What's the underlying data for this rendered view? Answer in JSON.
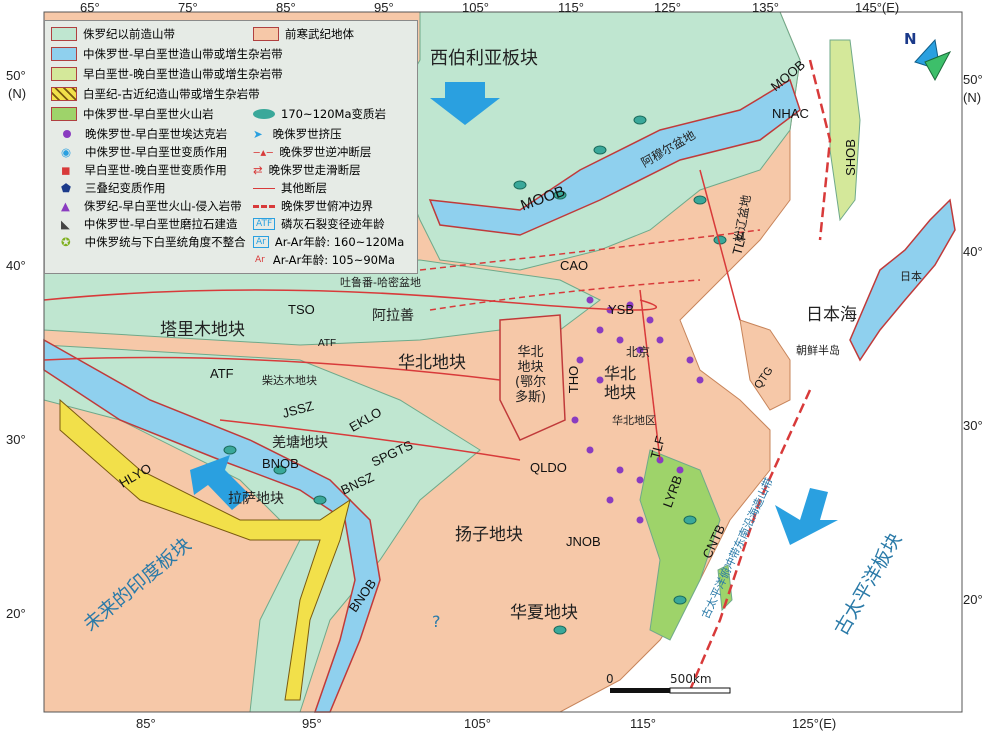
{
  "latitude_labels_left": [
    "50°",
    "(N)",
    "40°",
    "30°",
    "20°"
  ],
  "latitude_labels_right": [
    "50°",
    "(N)",
    "40°",
    "30°",
    "20°"
  ],
  "longitude_labels_top": [
    "65°",
    "75°",
    "85°",
    "95°",
    "105°",
    "115°",
    "125°",
    "135°",
    "145°(E)"
  ],
  "longitude_labels_bottom": [
    "85°",
    "95°",
    "105°",
    "115°",
    "125°(E)"
  ],
  "legend": {
    "items": [
      {
        "label": "侏罗纪以前造山带",
        "color": "#bfe6d0"
      },
      {
        "label": "中侏罗世-早白垩世造山带或增生杂岩带",
        "color": "#8fd0ee"
      },
      {
        "label": "早白垩世-晚白垩世造山带或增生杂岩带",
        "color": "#d4e89a"
      },
      {
        "label": "白垩纪-古近纪造山带或增生杂岩带",
        "color": "#f2e04a"
      },
      {
        "label": "中侏罗世-早白垩世火山岩",
        "color": "#9ed36a"
      },
      {
        "label": "晚侏罗世-早白垩世埃达克岩"
      },
      {
        "label": "中侏罗世-早白垩世变质作用"
      },
      {
        "label": "早白垩世-晚白垩世变质作用"
      },
      {
        "label": "三叠纪变质作用"
      },
      {
        "label": "侏罗纪-早白垩世火山-侵入岩带"
      },
      {
        "label": "中侏罗世-早白垩世磨拉石建造"
      },
      {
        "label": "中侏罗统与下白垩统角度不整合"
      },
      {
        "label": "前寒武纪地体",
        "color": "#f6c8a8"
      },
      {
        "label": "170~120Ma变质岩"
      },
      {
        "label": "晚侏罗世挤压"
      },
      {
        "label": "晚侏罗世逆冲断层"
      },
      {
        "label": "晚侏罗世走滑断层"
      },
      {
        "label": "其他断层"
      },
      {
        "label": "晚侏罗世俯冲边界"
      },
      {
        "label": "磷灰石裂变径迹年龄",
        "tag": "ATF"
      },
      {
        "label": "Ar-Ar年龄: 160~120Ma",
        "tag": "Ar"
      },
      {
        "label": "Ar-Ar年龄: 105~90Ma",
        "tag": "Ar"
      }
    ]
  },
  "place_labels": {
    "siberia": "西伯利亚板块",
    "tarim": "塔里木地块",
    "north_china_block": "华北地块",
    "north_china_ordos": "华北\n地块\n(鄂尔\n多斯)",
    "north_china_east": "华北\n地块",
    "north_china_region": "华北地区",
    "yangtze": "扬子地块",
    "cathaysia": "华夏地块",
    "qiangtang": "羌塘地块",
    "lhasa": "拉萨地块",
    "qaidam": "柴达木地块",
    "alxa": "阿拉善",
    "turpan": "吐鲁番-哈密盆地",
    "amur": "阿穆尔盆地",
    "songliao": "松辽盆地",
    "sea_japan": "日本海",
    "japan": "日本",
    "korea": "朝鲜半岛",
    "beijing": "北京",
    "india": "未来的印度板块",
    "pacific": "古太平洋板块",
    "paleo_pacific_belt": "古太平洋俯冲带东南沿海造山带",
    "question": "?"
  },
  "abbreviations": [
    "MOOB",
    "MOOB",
    "NHAC",
    "SHOB",
    "CAO",
    "TLF",
    "TSO",
    "ATF",
    "ATF",
    "YSB",
    "THO",
    "JSSZ",
    "EKLO",
    "SPGTS",
    "BNOB",
    "BNSZ",
    "HLYO",
    "QLDO",
    "TLF",
    "LYRB",
    "JNOB",
    "CNTB",
    "BNOB",
    "QTG"
  ],
  "scale": {
    "zero": "0",
    "length": "500km"
  },
  "north_label": "N",
  "colors": {
    "sea": "#ffffff",
    "precambrian": "#f6c8a8",
    "orogen_old": "#bfe6d0",
    "orogen_mid": "#8fd0ee",
    "orogen_late": "#d4e89a",
    "arrow": "#2aa0e0",
    "fault": "#d83a3a",
    "adakite": "#8a3cc0"
  }
}
